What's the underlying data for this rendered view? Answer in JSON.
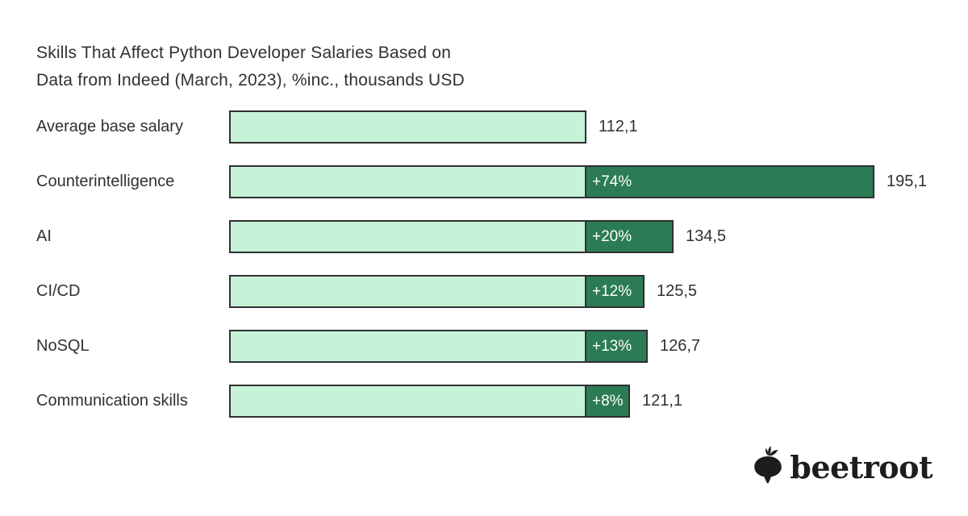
{
  "title": {
    "line1": "Skills That Affect Python Developer Salaries Based on",
    "line2": "Data from Indeed (March, 2023), %inc., thousands USD"
  },
  "chart_data": {
    "type": "bar",
    "orientation": "horizontal",
    "unit": "thousands USD",
    "base_value": 112.1,
    "colors": {
      "base_segment": "#c6f2d7",
      "increase_segment": "#2b7c55",
      "segment_border": "#2f2f33",
      "text": "#303036",
      "increase_label_text": "#ffffff"
    },
    "rows": [
      {
        "label": "Average base salary",
        "value": 112.1,
        "value_display": "112,1",
        "pct_display": ""
      },
      {
        "label": "Counterintelligence",
        "value": 195.1,
        "value_display": "195,1",
        "pct_display": "+74%"
      },
      {
        "label": "AI",
        "value": 134.5,
        "value_display": "134,5",
        "pct_display": "+20%"
      },
      {
        "label": "CI/CD",
        "value": 125.5,
        "value_display": "125,5",
        "pct_display": "+12%"
      },
      {
        "label": "NoSQL",
        "value": 126.7,
        "value_display": "126,7",
        "pct_display": "+13%"
      },
      {
        "label": "Communication skills",
        "value": 121.1,
        "value_display": "121,1",
        "pct_display": "+8%"
      }
    ]
  },
  "logo": {
    "text": "beetroot",
    "icon": "beetroot-icon"
  }
}
